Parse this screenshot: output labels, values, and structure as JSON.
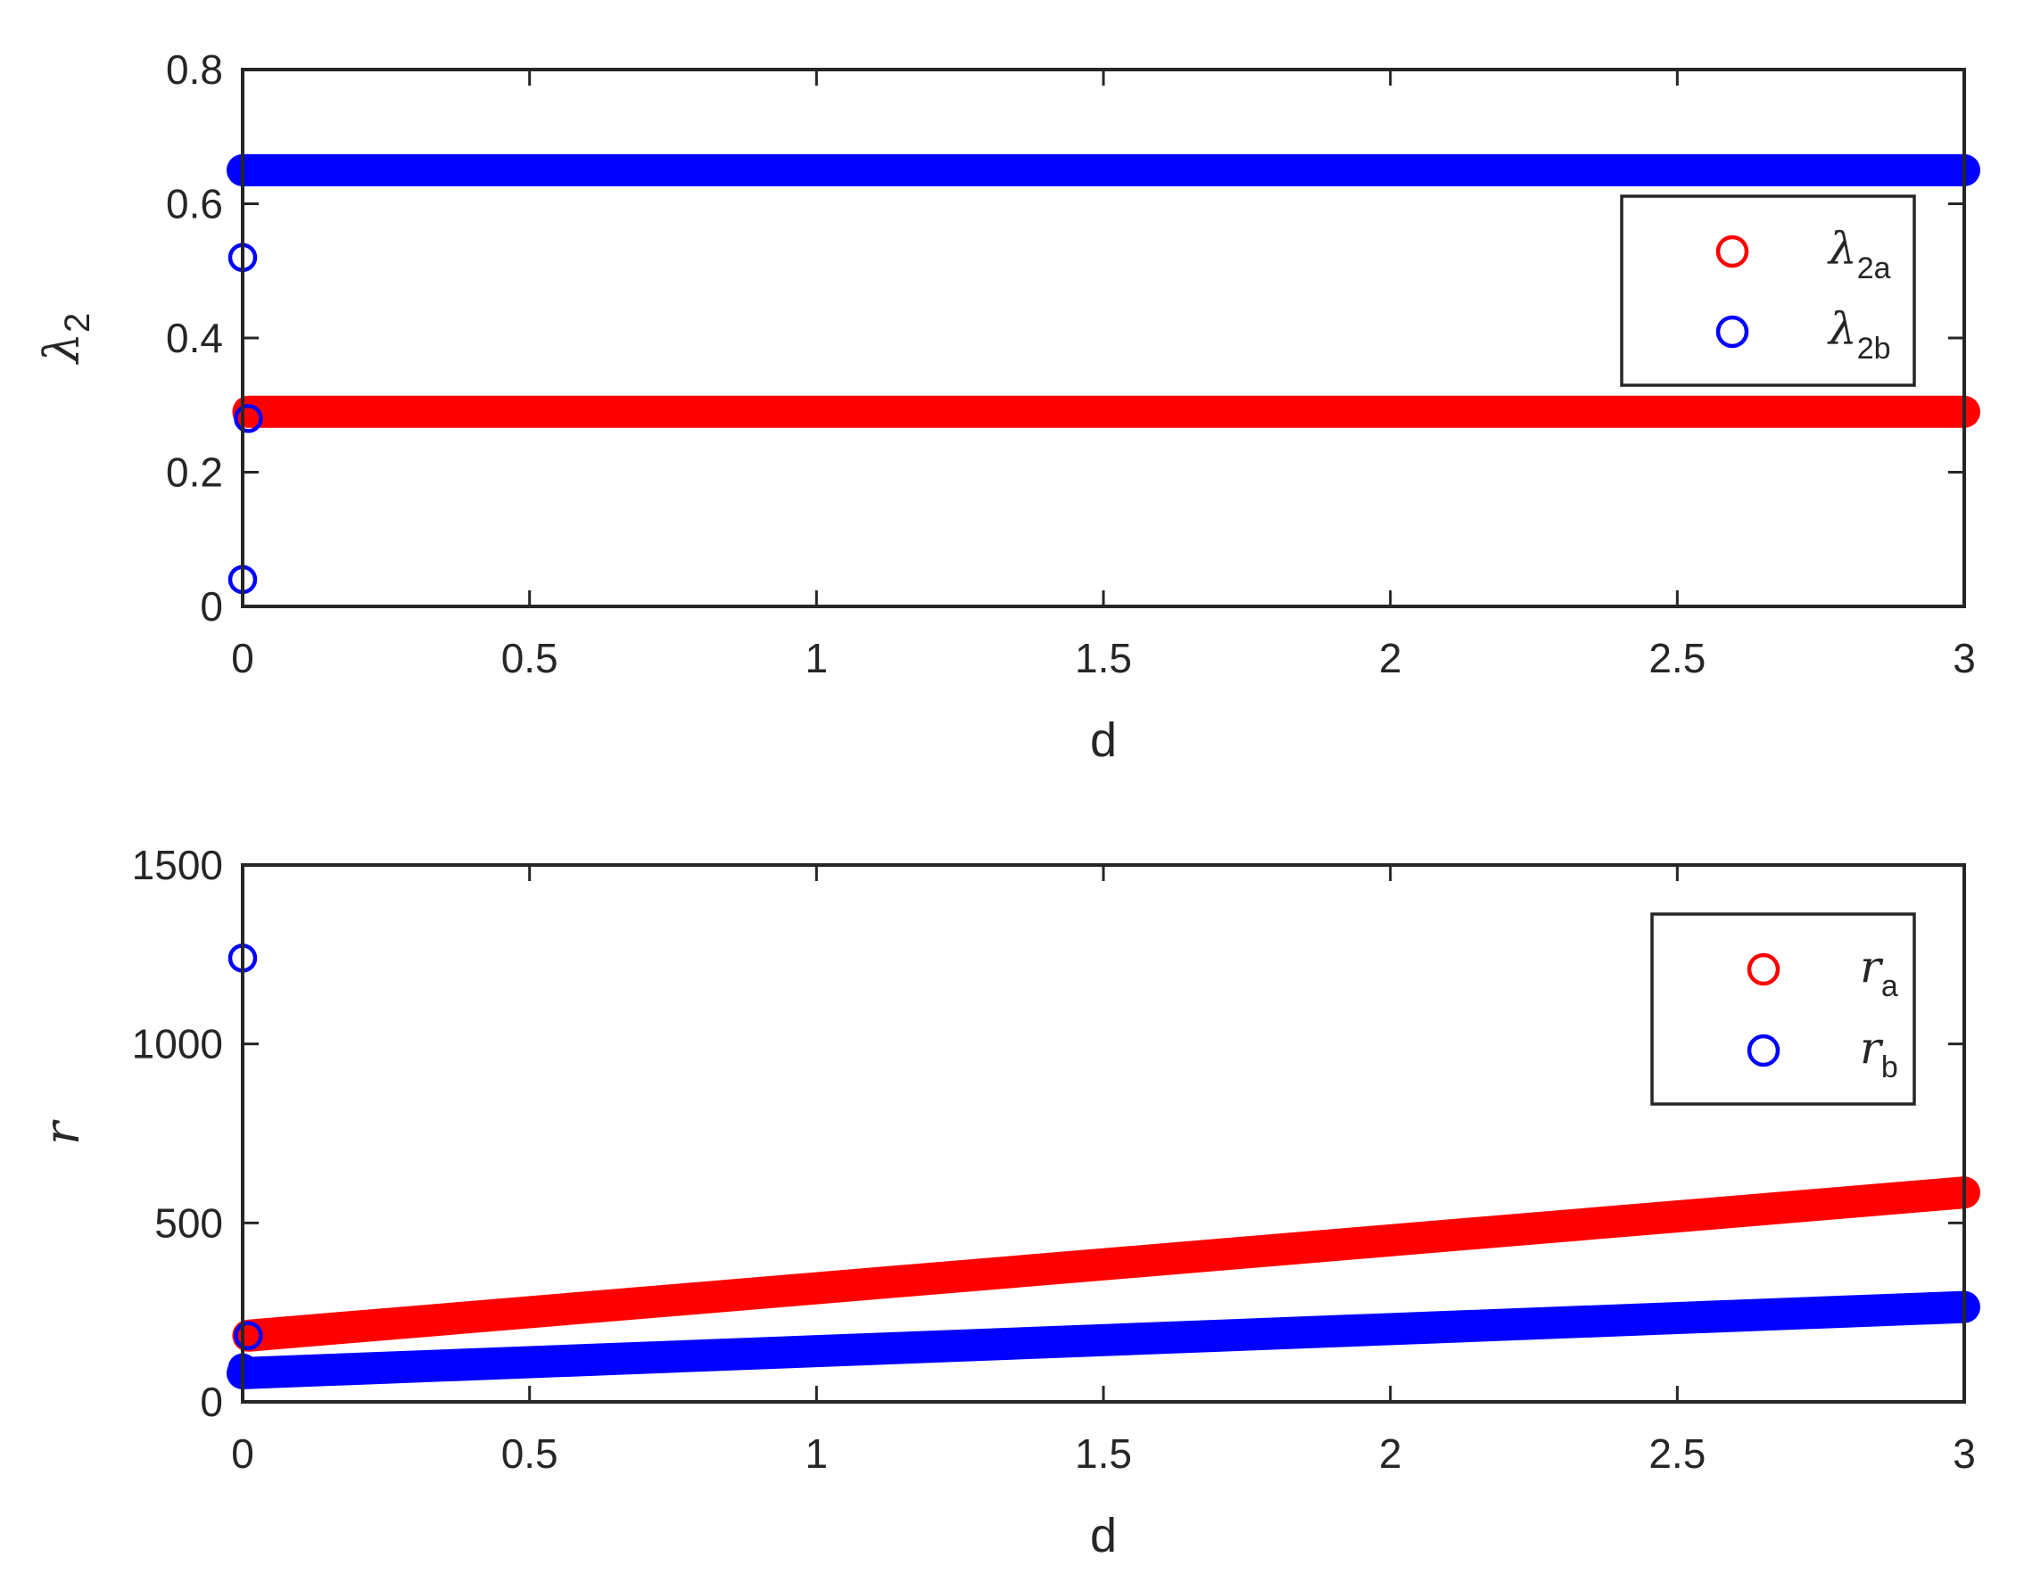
{
  "chart_data": [
    {
      "type": "scatter",
      "xlabel": "d",
      "ylabel": "λ",
      "ylabel_sub": "2",
      "xlim": [
        0,
        3
      ],
      "ylim": [
        0,
        0.8
      ],
      "xticks": [
        0,
        0.5,
        1,
        1.5,
        2,
        2.5,
        3
      ],
      "xtick_labels": [
        "0",
        "0.5",
        "1",
        "1.5",
        "2",
        "2.5",
        "3"
      ],
      "yticks": [
        0,
        0.2,
        0.4,
        0.6,
        0.8
      ],
      "ytick_labels": [
        "0",
        "0.2",
        "0.4",
        "0.6",
        "0.8"
      ],
      "legend_position": "top-right",
      "grid": false,
      "series": [
        {
          "name": "λ",
          "name_sub": "2a",
          "color": "#ff0000",
          "line": {
            "x_start": 0.01,
            "x_end": 3,
            "y_start": 0.29,
            "y_end": 0.29
          },
          "points": [
            {
              "x": 0.01,
              "y": 0.29
            }
          ]
        },
        {
          "name": "λ",
          "name_sub": "2b",
          "color": "#0000ff",
          "line": {
            "x_start": 0.0,
            "x_end": 3,
            "y_start": 0.65,
            "y_end": 0.65
          },
          "points": [
            {
              "x": 0.0,
              "y": 0.52
            },
            {
              "x": 0.01,
              "y": 0.28
            },
            {
              "x": 0.0,
              "y": 0.04
            }
          ]
        }
      ]
    },
    {
      "type": "scatter",
      "xlabel": "d",
      "ylabel": "r",
      "ylabel_sub": "",
      "xlim": [
        0,
        3
      ],
      "ylim": [
        0,
        1500
      ],
      "xticks": [
        0,
        0.5,
        1,
        1.5,
        2,
        2.5,
        3
      ],
      "xtick_labels": [
        "0",
        "0.5",
        "1",
        "1.5",
        "2",
        "2.5",
        "3"
      ],
      "yticks": [
        0,
        500,
        1000,
        1500
      ],
      "ytick_labels": [
        "0",
        "500",
        "1000",
        "1500"
      ],
      "legend_position": "top-right",
      "grid": false,
      "series": [
        {
          "name": "r",
          "name_sub": "a",
          "color": "#ff0000",
          "line": {
            "x_start": 0.01,
            "x_end": 3,
            "y_start": 185,
            "y_end": 585
          },
          "points": [
            {
              "x": 0.01,
              "y": 185
            }
          ]
        },
        {
          "name": "r",
          "name_sub": "b",
          "color": "#0000ff",
          "line": {
            "x_start": 0.0,
            "x_end": 3,
            "y_start": 80,
            "y_end": 265
          },
          "points": [
            {
              "x": 0.0,
              "y": 1240
            },
            {
              "x": 0.01,
              "y": 185
            },
            {
              "x": 0.0,
              "y": 95
            }
          ]
        }
      ]
    }
  ]
}
